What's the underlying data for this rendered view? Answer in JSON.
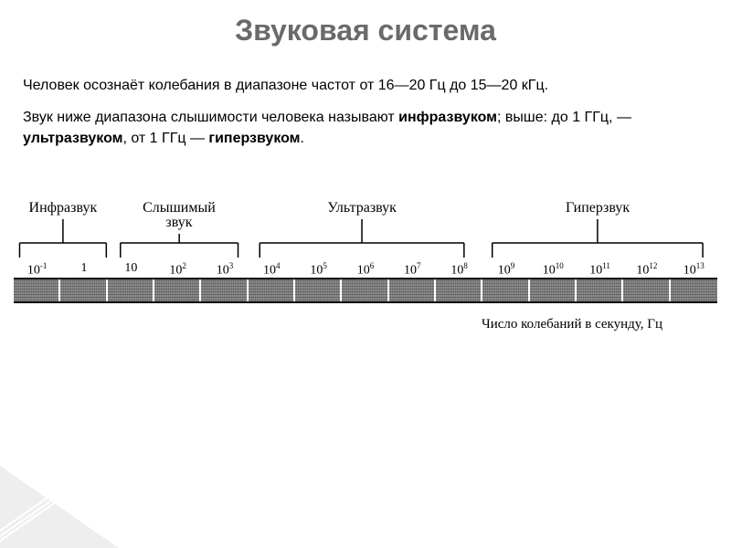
{
  "title": "Звуковая система",
  "paragraph1": "Человек осознаёт колебания в диапазоне частот от 16—20 Гц до 15—20 кГц.",
  "paragraph2_a": "Звук ниже диапазона слышимости человека называют ",
  "paragraph2_b": "инфразвуком",
  "paragraph2_c": "; выше: до 1 ГГц, — ",
  "paragraph2_d": "ультразвуком",
  "paragraph2_e": ", от 1 ГГц — ",
  "paragraph2_f": "гиперзвуком",
  "paragraph2_g": ".",
  "diagram": {
    "region_labels": [
      {
        "text": "Инфразвук",
        "left_pct": 0,
        "width_pct": 14,
        "twoLine": false
      },
      {
        "text": "Слышимый\nзвук",
        "left_pct": 14,
        "width_pct": 19,
        "twoLine": true
      },
      {
        "text": "Ультразвук",
        "left_pct": 33,
        "width_pct": 33,
        "twoLine": false
      },
      {
        "text": "Гиперзвук",
        "left_pct": 66,
        "width_pct": 34,
        "twoLine": false
      }
    ],
    "scale_values": [
      {
        "base": "10",
        "exp": "-1"
      },
      {
        "base": "1",
        "exp": ""
      },
      {
        "base": "10",
        "exp": ""
      },
      {
        "base": "10",
        "exp": "2"
      },
      {
        "base": "10",
        "exp": "3"
      },
      {
        "base": "10",
        "exp": "4"
      },
      {
        "base": "10",
        "exp": "5"
      },
      {
        "base": "10",
        "exp": "6"
      },
      {
        "base": "10",
        "exp": "7"
      },
      {
        "base": "10",
        "exp": "8"
      },
      {
        "base": "10",
        "exp": "9"
      },
      {
        "base": "10",
        "exp": "10"
      },
      {
        "base": "10",
        "exp": "11"
      },
      {
        "base": "10",
        "exp": "12"
      },
      {
        "base": "10",
        "exp": "13"
      }
    ],
    "boundary_exponents": [
      1,
      4,
      9
    ],
    "cell_count": 15,
    "cell_width_pct": 6.666,
    "caption": "Число колебаний в секунду, Гц",
    "colors": {
      "band_fill": "#7a7a7a",
      "border": "#000000",
      "background": "#ffffff"
    }
  }
}
